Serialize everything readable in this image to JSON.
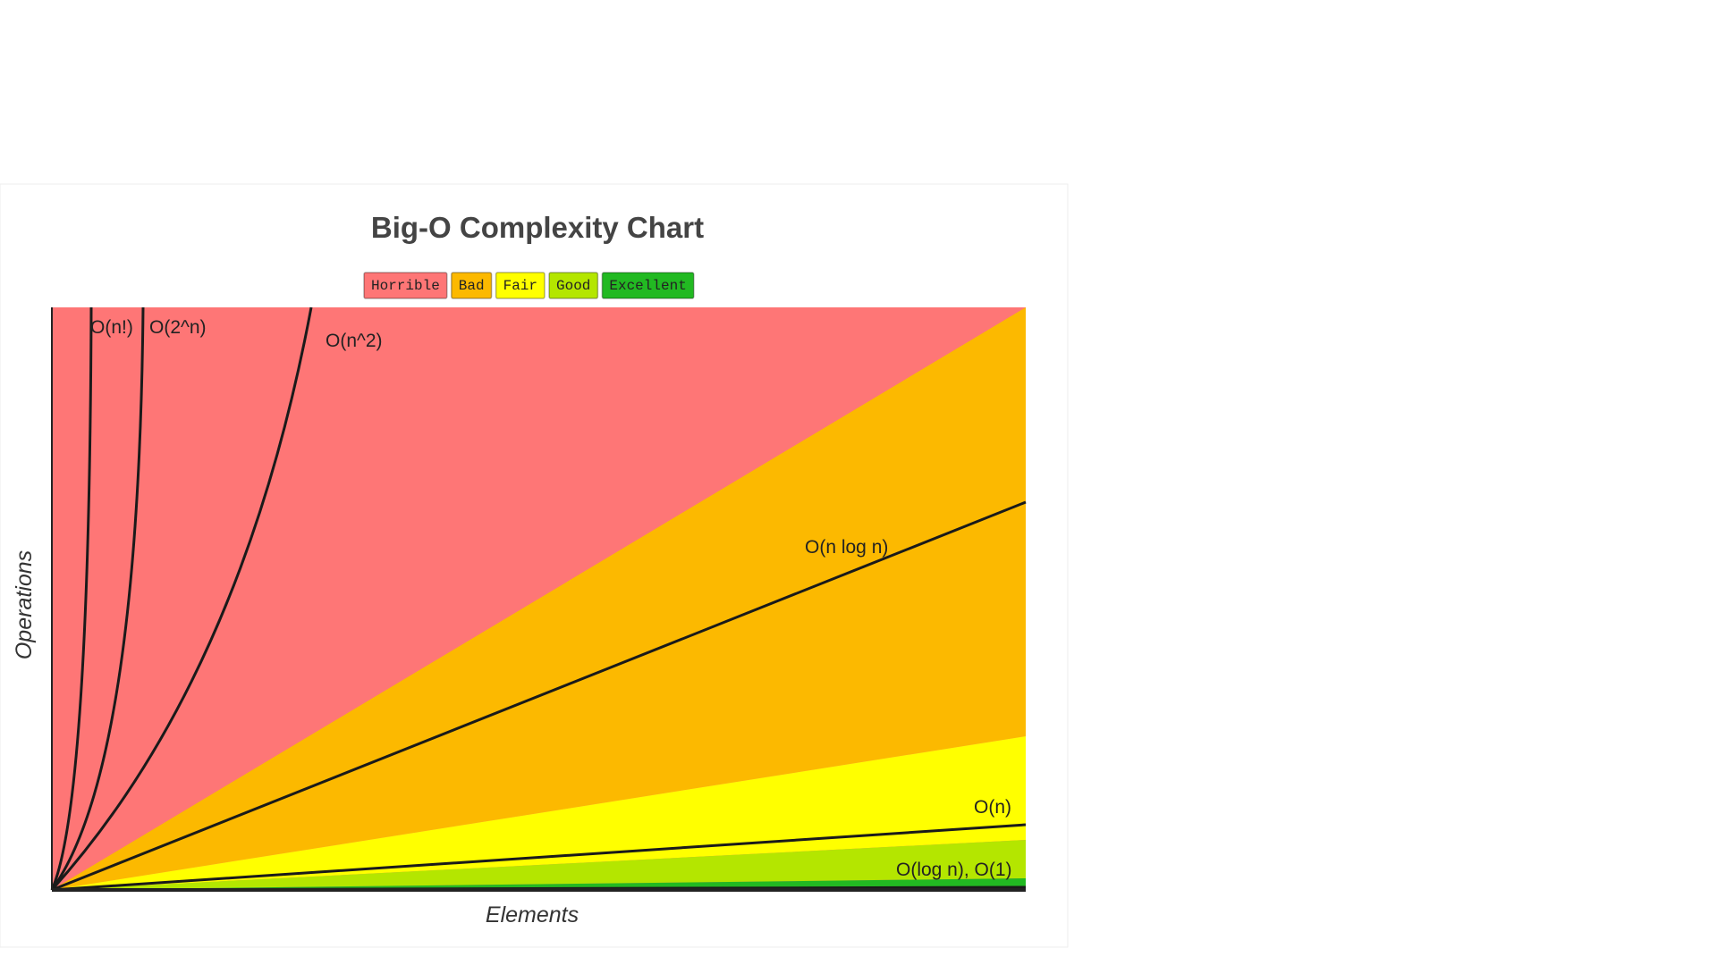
{
  "title": "Big-O Complexity Chart",
  "legend": [
    {
      "label": "Horrible",
      "color": "#fe7676"
    },
    {
      "label": "Bad",
      "color": "#fcb900"
    },
    {
      "label": "Fair",
      "color": "#ffff00"
    },
    {
      "label": "Good",
      "color": "#b4e600"
    },
    {
      "label": "Excellent",
      "color": "#22b922"
    }
  ],
  "curves": [
    {
      "label": "O(n!)"
    },
    {
      "label": "O(2^n)"
    },
    {
      "label": "O(n^2)"
    },
    {
      "label": "O(n log n)"
    },
    {
      "label": "O(n)"
    },
    {
      "label": "O(log n), O(1)"
    }
  ],
  "x_axis_label": "Elements",
  "y_axis_label": "Operations"
}
